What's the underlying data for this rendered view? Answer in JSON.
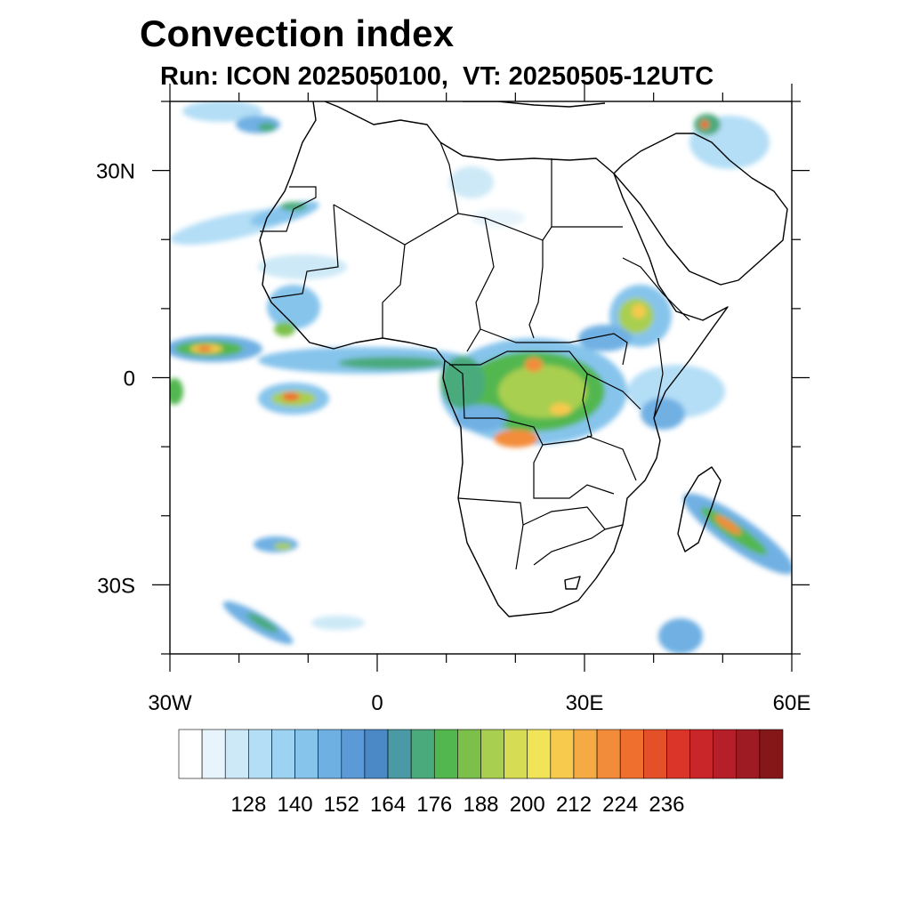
{
  "title": "Convection index",
  "subtitle": "Run: ICON 2025050100,  VT: 20250505-12UTC",
  "map": {
    "lon_range": [
      -30,
      60
    ],
    "lat_range": [
      -40,
      40
    ],
    "x_ticks": [
      {
        "lon": -30,
        "label": "30W"
      },
      {
        "lon": 0,
        "label": "0"
      },
      {
        "lon": 30,
        "label": "30E"
      },
      {
        "lon": 60,
        "label": "60E"
      }
    ],
    "y_ticks": [
      {
        "lat": 30,
        "label": "30N"
      },
      {
        "lat": 0,
        "label": "0"
      },
      {
        "lat": -30,
        "label": "30S"
      }
    ],
    "minor_lon_step": 10,
    "minor_lat_step": 10
  },
  "colorbar": {
    "colors": [
      "#ffffff",
      "#e8f4fb",
      "#cde9f7",
      "#b4def6",
      "#9dd3f2",
      "#86c4ec",
      "#6fb0e3",
      "#5b9ad6",
      "#4b88c6",
      "#4a9aa6",
      "#4aaa7c",
      "#52b74f",
      "#7cc04a",
      "#a8cf50",
      "#d6dd55",
      "#f1e459",
      "#f7c94d",
      "#f6aa43",
      "#f38c3a",
      "#ef6f2f",
      "#e45128",
      "#da3528",
      "#c9262a",
      "#b51f29",
      "#9e1b24",
      "#861719"
    ],
    "labels": [
      "128",
      "140",
      "152",
      "164",
      "176",
      "188",
      "200",
      "212",
      "224",
      "236"
    ]
  }
}
